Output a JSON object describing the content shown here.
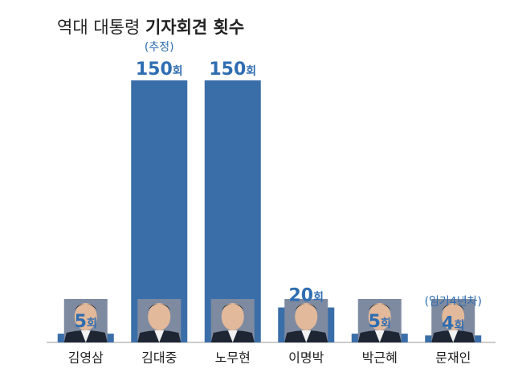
{
  "title": {
    "regular": "역대 대통령",
    "bold": "기자회견 횟수"
  },
  "chart_data": {
    "type": "bar",
    "title": "역대 대통령 기자회견 횟수",
    "unit": "회",
    "categories": [
      "김영삼",
      "김대중",
      "노무현",
      "이명박",
      "박근혜",
      "문재인"
    ],
    "values": [
      5,
      150,
      150,
      20,
      5,
      4
    ],
    "notes": [
      "",
      "(추정)",
      "",
      "",
      "",
      "(임기4년차)"
    ],
    "bar_color": "#3a6ea8",
    "value_label_color": "#2f6db1",
    "ylim": [
      0,
      150
    ],
    "grid": false,
    "legend": "none"
  }
}
